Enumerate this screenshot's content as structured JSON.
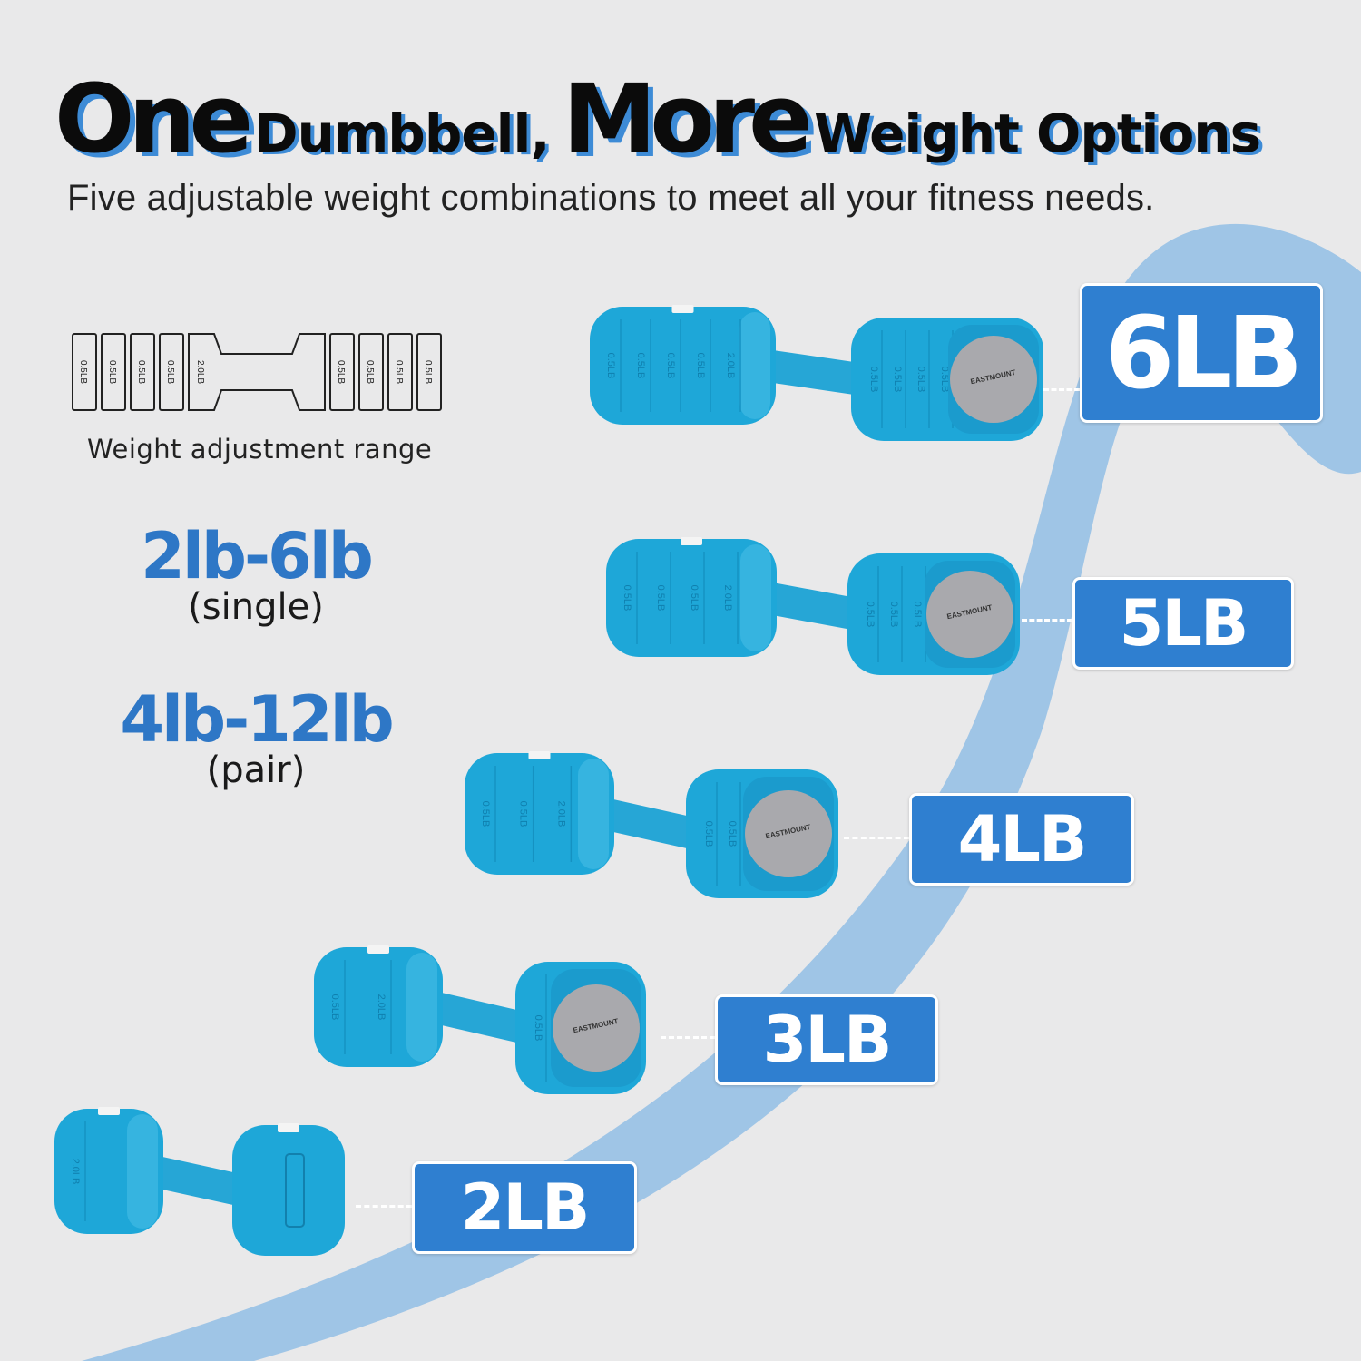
{
  "header": {
    "word_one": "One",
    "word_dumbbell": "Dumbbell,",
    "word_more": "More",
    "word_weight_options": "Weight Options",
    "subtitle": "Five adjustable weight combinations to meet all your fitness needs."
  },
  "diagram": {
    "plate_labels_left": [
      "0.5LB",
      "0.5LB",
      "0.5LB",
      "0.5LB"
    ],
    "handle_label": "2.0LB",
    "plate_labels_right": [
      "0.5LB",
      "0.5LB",
      "0.5LB",
      "0.5LB"
    ],
    "caption": "Weight adjustment range"
  },
  "ranges": {
    "single_value": "2lb-6lb",
    "single_label": "(single)",
    "pair_value": "4lb-12lb",
    "pair_label": "(pair)"
  },
  "dumbbells": [
    {
      "weight": "6LB",
      "left_labels": [
        "0.5LB",
        "0.5LB",
        "0.5LB",
        "0.5LB",
        "2.0LB"
      ],
      "right_labels": [
        "0.5LB",
        "0.5LB",
        "0.5LB",
        "0.5LB"
      ],
      "brand": "EASTMOUNT"
    },
    {
      "weight": "5LB",
      "left_labels": [
        "0.5LB",
        "0.5LB",
        "0.5LB",
        "2.0LB"
      ],
      "right_labels": [
        "0.5LB",
        "0.5LB",
        "0.5LB"
      ],
      "brand": "EASTMOUNT"
    },
    {
      "weight": "4LB",
      "left_labels": [
        "0.5LB",
        "0.5LB",
        "2.0LB"
      ],
      "right_labels": [
        "0.5LB",
        "0.5LB"
      ],
      "brand": "EASTMOUNT"
    },
    {
      "weight": "3LB",
      "left_labels": [
        "0.5LB",
        "2.0LB"
      ],
      "right_labels": [
        "0.5LB"
      ],
      "brand": "EASTMOUNT"
    },
    {
      "weight": "2LB",
      "left_labels": [
        "2.0LB"
      ],
      "right_labels": [],
      "brand": ""
    }
  ],
  "colors": {
    "background": "#e9e9ea",
    "accent_blue": "#2f7fd0",
    "ribbon_blue": "#9bc3e6",
    "dumbbell_blue": "#1ea7d8",
    "endcap_gray": "#a9a9ad"
  }
}
